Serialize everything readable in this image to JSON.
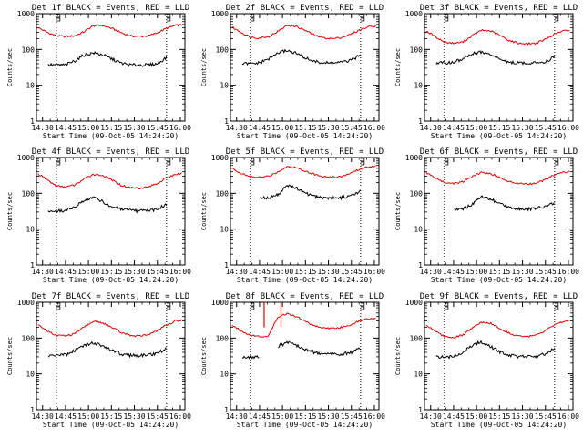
{
  "colors": {
    "events": "#000000",
    "lld": "#e00000",
    "frame": "#000000",
    "marker": "#000000"
  },
  "ylabel": "Counts/sec",
  "xlabel": "Start Time (09-Oct-05 14:24:20)",
  "xticks": [
    "14:30",
    "14:45",
    "15:00",
    "15:15",
    "15:30",
    "15:45",
    "16:00"
  ],
  "yticks": [
    "1",
    "10",
    "100",
    "1000"
  ],
  "chart_data": [
    {
      "type": "line",
      "title": "Det 1f BLACK = Events, RED = LLD",
      "xlabel": "Start Time (09-Oct-05 14:24:20)",
      "ylabel": "Counts/sec",
      "ylim": [
        1,
        1000
      ],
      "log_y": true,
      "xlim": [
        "14:26",
        "16:03"
      ],
      "markers": [
        "14:39",
        "15:51"
      ],
      "x": [
        "14:27",
        "14:33",
        "14:39",
        "14:45",
        "14:51",
        "14:57",
        "15:03",
        "15:09",
        "15:15",
        "15:21",
        "15:27",
        "15:33",
        "15:39",
        "15:45",
        "15:51",
        "15:57",
        "16:01"
      ],
      "series": [
        {
          "name": "LLD",
          "values": [
            410,
            300,
            240,
            230,
            240,
            310,
            460,
            470,
            390,
            300,
            240,
            230,
            240,
            290,
            390,
            470,
            480
          ]
        },
        {
          "name": "Events",
          "start": "14:33",
          "end": "15:51",
          "values": [
            null,
            37,
            37,
            37,
            48,
            70,
            80,
            72,
            55,
            42,
            37,
            37,
            37,
            40,
            60,
            null,
            null
          ]
        }
      ]
    },
    {
      "type": "line",
      "title": "Det 2f BLACK = Events, RED = LLD",
      "xlabel": "Start Time (09-Oct-05 14:24:20)",
      "ylabel": "Counts/sec",
      "ylim": [
        1,
        1000
      ],
      "log_y": true,
      "xlim": [
        "14:26",
        "16:03"
      ],
      "markers": [
        "14:39",
        "15:51"
      ],
      "x": [
        "14:27",
        "14:33",
        "14:39",
        "14:45",
        "14:51",
        "14:57",
        "15:03",
        "15:09",
        "15:15",
        "15:21",
        "15:27",
        "15:33",
        "15:39",
        "15:45",
        "15:51",
        "15:57",
        "16:01"
      ],
      "series": [
        {
          "name": "LLD",
          "values": [
            420,
            300,
            220,
            210,
            230,
            320,
            470,
            440,
            340,
            250,
            210,
            200,
            220,
            270,
            360,
            440,
            460
          ]
        },
        {
          "name": "Events",
          "start": "14:33",
          "end": "15:53",
          "values": [
            null,
            40,
            40,
            42,
            55,
            80,
            95,
            78,
            58,
            46,
            42,
            42,
            44,
            50,
            70,
            null,
            null
          ]
        }
      ]
    },
    {
      "type": "line",
      "title": "Det 3f BLACK = Events, RED = LLD",
      "xlabel": "Start Time (09-Oct-05 14:24:20)",
      "ylabel": "Counts/sec",
      "ylim": [
        1,
        1000
      ],
      "log_y": true,
      "xlim": [
        "14:26",
        "16:03"
      ],
      "markers": [
        "14:39",
        "15:51"
      ],
      "x": [
        "14:27",
        "14:33",
        "14:39",
        "14:45",
        "14:51",
        "14:57",
        "15:03",
        "15:09",
        "15:15",
        "15:21",
        "15:27",
        "15:33",
        "15:39",
        "15:45",
        "15:51",
        "15:57",
        "16:01"
      ],
      "series": [
        {
          "name": "LLD",
          "values": [
            330,
            230,
            160,
            150,
            160,
            240,
            340,
            330,
            250,
            180,
            150,
            145,
            150,
            190,
            270,
            330,
            340
          ]
        },
        {
          "name": "Events",
          "start": "14:33",
          "end": "15:51",
          "values": [
            null,
            42,
            42,
            44,
            55,
            75,
            85,
            70,
            55,
            44,
            42,
            42,
            42,
            46,
            62,
            null,
            null
          ]
        }
      ]
    },
    {
      "type": "line",
      "title": "Det 4f BLACK = Events, RED = LLD",
      "xlabel": "Start Time (09-Oct-05 14:24:20)",
      "ylabel": "Counts/sec",
      "ylim": [
        1,
        1000
      ],
      "log_y": true,
      "xlim": [
        "14:26",
        "16:03"
      ],
      "markers": [
        "14:39",
        "15:51"
      ],
      "x": [
        "14:27",
        "14:33",
        "14:39",
        "14:45",
        "14:51",
        "14:57",
        "15:03",
        "15:09",
        "15:15",
        "15:21",
        "15:27",
        "15:33",
        "15:39",
        "15:45",
        "15:51",
        "15:57",
        "16:01"
      ],
      "series": [
        {
          "name": "LLD",
          "values": [
            350,
            240,
            160,
            150,
            170,
            250,
            340,
            320,
            240,
            170,
            145,
            140,
            150,
            190,
            270,
            340,
            360
          ]
        },
        {
          "name": "Events",
          "start": "14:33",
          "end": "15:51",
          "values": [
            null,
            32,
            32,
            33,
            42,
            60,
            80,
            60,
            42,
            36,
            33,
            32,
            33,
            36,
            50,
            null,
            null
          ]
        }
      ]
    },
    {
      "type": "line",
      "title": "Det 5f BLACK = Events, RED = LLD",
      "xlabel": "Start Time (09-Oct-05 14:24:20)",
      "ylabel": "Counts/sec",
      "ylim": [
        1,
        1000
      ],
      "log_y": true,
      "xlim": [
        "14:26",
        "16:03"
      ],
      "markers": [
        "14:39",
        "15:51"
      ],
      "x": [
        "14:27",
        "14:33",
        "14:39",
        "14:45",
        "14:51",
        "14:57",
        "15:03",
        "15:09",
        "15:15",
        "15:21",
        "15:27",
        "15:33",
        "15:39",
        "15:45",
        "15:51",
        "15:57",
        "16:01"
      ],
      "series": [
        {
          "name": "LLD",
          "values": [
            500,
            360,
            290,
            280,
            300,
            400,
            560,
            520,
            420,
            340,
            290,
            280,
            300,
            370,
            480,
            560,
            580
          ]
        },
        {
          "name": "Events",
          "start": "14:45",
          "end": "15:53",
          "values": [
            null,
            null,
            null,
            75,
            75,
            90,
            170,
            140,
            100,
            82,
            76,
            75,
            76,
            85,
            120,
            null,
            null
          ]
        }
      ]
    },
    {
      "type": "line",
      "title": "Det 6f BLACK = Events, RED = LLD",
      "xlabel": "Start Time (09-Oct-05 14:24:20)",
      "ylabel": "Counts/sec",
      "ylim": [
        1,
        1000
      ],
      "log_y": true,
      "xlim": [
        "14:26",
        "16:03"
      ],
      "markers": [
        "14:39",
        "15:51"
      ],
      "x": [
        "14:27",
        "14:33",
        "14:39",
        "14:45",
        "14:51",
        "14:57",
        "15:03",
        "15:09",
        "15:15",
        "15:21",
        "15:27",
        "15:33",
        "15:39",
        "15:45",
        "15:51",
        "15:57",
        "16:01"
      ],
      "series": [
        {
          "name": "LLD",
          "values": [
            380,
            270,
            200,
            190,
            210,
            300,
            380,
            360,
            280,
            210,
            190,
            180,
            190,
            240,
            330,
            390,
            400
          ]
        },
        {
          "name": "Events",
          "start": "14:45",
          "end": "15:53",
          "values": [
            null,
            null,
            null,
            35,
            36,
            50,
            80,
            70,
            50,
            42,
            38,
            36,
            38,
            42,
            55,
            null,
            null
          ]
        }
      ]
    },
    {
      "type": "line",
      "title": "Det 7f BLACK = Events, RED = LLD",
      "xlabel": "Start Time (09-Oct-05 14:24:20)",
      "ylabel": "Counts/sec",
      "ylim": [
        1,
        1000
      ],
      "log_y": true,
      "xlim": [
        "14:26",
        "16:03"
      ],
      "markers": [
        "14:39",
        "15:51"
      ],
      "x": [
        "14:27",
        "14:33",
        "14:39",
        "14:45",
        "14:51",
        "14:57",
        "15:03",
        "15:09",
        "15:15",
        "15:21",
        "15:27",
        "15:33",
        "15:39",
        "15:45",
        "15:51",
        "15:57",
        "16:01"
      ],
      "series": [
        {
          "name": "LLD",
          "values": [
            230,
            160,
            120,
            115,
            130,
            200,
            290,
            270,
            200,
            145,
            120,
            115,
            125,
            160,
            230,
            300,
            320
          ]
        },
        {
          "name": "Events",
          "start": "14:33",
          "end": "15:51",
          "values": [
            null,
            32,
            33,
            34,
            45,
            62,
            75,
            60,
            45,
            36,
            33,
            33,
            34,
            38,
            52,
            null,
            null
          ]
        }
      ]
    },
    {
      "type": "line",
      "title": "Det 8f BLACK = Events, RED = LLD",
      "xlabel": "Start Time (09-Oct-05 14:24:20)",
      "ylabel": "Counts/sec",
      "ylim": [
        1,
        1000
      ],
      "log_y": true,
      "xlim": [
        "14:26",
        "16:03"
      ],
      "markers": [
        "14:39",
        "15:51"
      ],
      "x": [
        "14:27",
        "14:33",
        "14:39",
        "14:45",
        "14:51",
        "14:57",
        "15:03",
        "15:09",
        "15:15",
        "15:21",
        "15:27",
        "15:33",
        "15:39",
        "15:45",
        "15:51",
        "15:57",
        "16:01"
      ],
      "series": [
        {
          "name": "LLD",
          "values": [
            230,
            160,
            120,
            110,
            115,
            400,
            480,
            400,
            290,
            220,
            190,
            185,
            200,
            240,
            310,
            350,
            360
          ]
        },
        {
          "name": "Events",
          "start": "14:33",
          "end": "15:51",
          "values": [
            null,
            30,
            30,
            30,
            null,
            60,
            75,
            62,
            48,
            40,
            36,
            35,
            36,
            40,
            52,
            null,
            null
          ]
        }
      ],
      "annotations": [
        "spike to 1000 at 14:48",
        "spike to 1000 at 14:59"
      ]
    },
    {
      "type": "line",
      "title": "Det 9f BLACK = Events, RED = LLD",
      "xlabel": "Start Time (09-Oct-05 14:24:20)",
      "ylabel": "Counts/sec",
      "ylim": [
        1,
        1000
      ],
      "log_y": true,
      "xlim": [
        "14:26",
        "16:03"
      ],
      "markers": [
        "14:39",
        "15:51"
      ],
      "x": [
        "14:27",
        "14:33",
        "14:39",
        "14:45",
        "14:51",
        "14:57",
        "15:03",
        "15:09",
        "15:15",
        "15:21",
        "15:27",
        "15:33",
        "15:39",
        "15:45",
        "15:51",
        "15:57",
        "16:01"
      ],
      "series": [
        {
          "name": "LLD",
          "values": [
            230,
            160,
            110,
            105,
            120,
            190,
            270,
            260,
            190,
            140,
            115,
            110,
            120,
            160,
            230,
            290,
            310
          ]
        },
        {
          "name": "Events",
          "start": "14:33",
          "end": "15:51",
          "values": [
            null,
            30,
            30,
            31,
            40,
            62,
            80,
            58,
            42,
            34,
            31,
            30,
            31,
            36,
            52,
            null,
            null
          ]
        }
      ]
    }
  ]
}
